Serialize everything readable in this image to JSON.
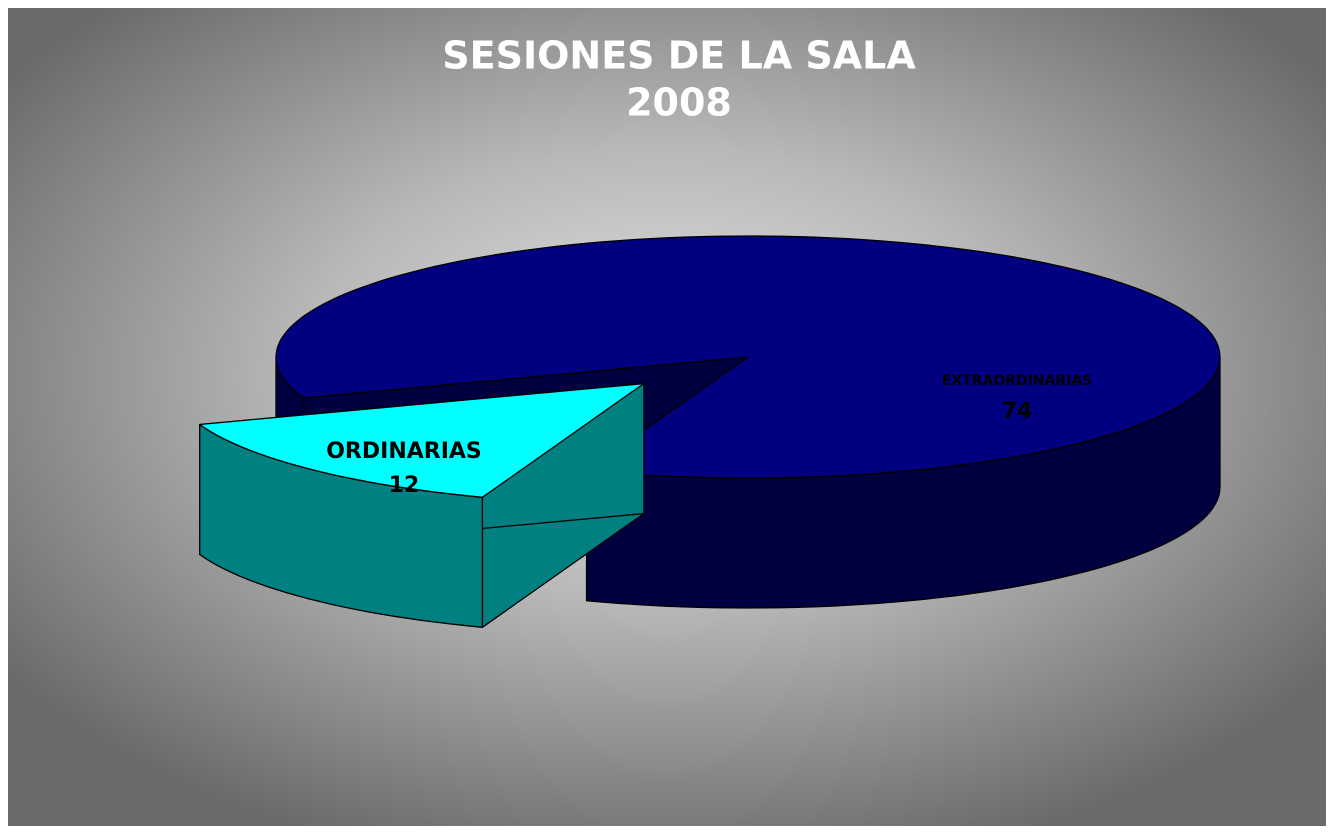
{
  "chart_data": {
    "type": "pie3d",
    "title": "SESIONES DE LA SALA",
    "subtitle": "2008",
    "categories": [
      "ORDINARIAS",
      "EXTRAORDINARIAS"
    ],
    "values": [
      12,
      74
    ],
    "colors": [
      "#00ffff",
      "#000080"
    ],
    "side_colors": [
      "#008080",
      "#000040"
    ],
    "exploded": [
      true,
      false
    ]
  }
}
